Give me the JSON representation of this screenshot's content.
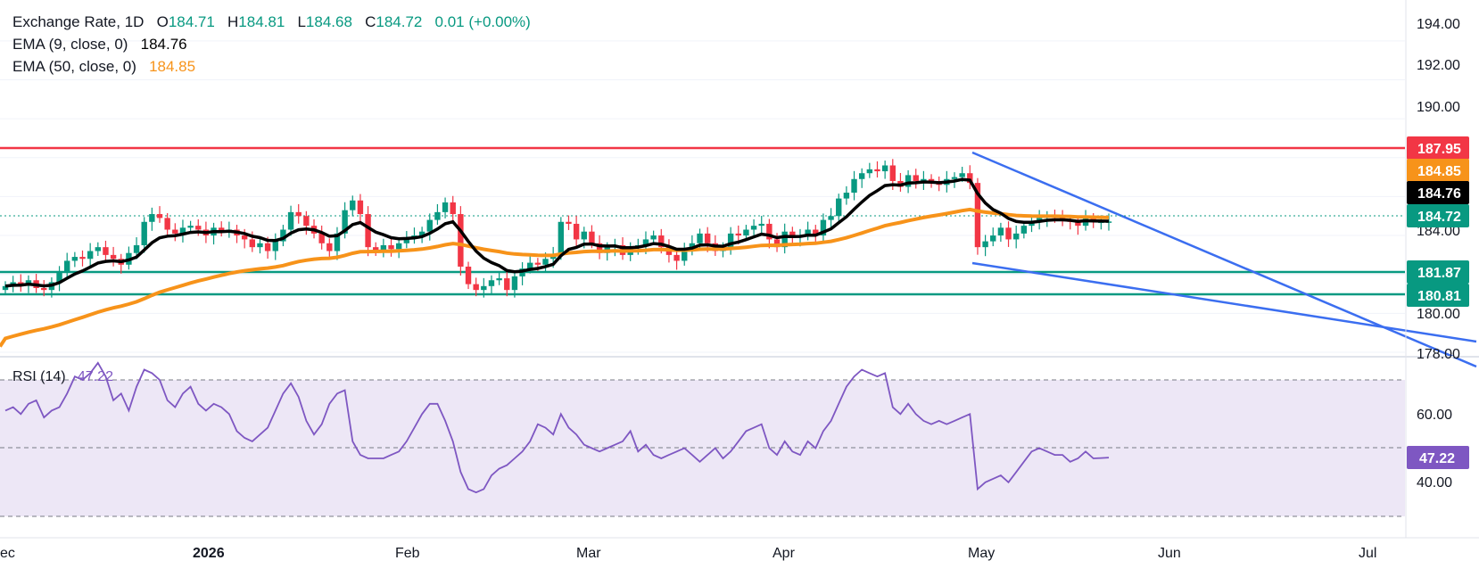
{
  "colors": {
    "up": "#089981",
    "down": "#f23645",
    "ema9": "#000000",
    "ema50": "#f7931a",
    "resistance": "#f23645",
    "support": "#089981",
    "trend": "#3b6ef0",
    "rsi": "#7e57c2",
    "rsi_band": "#ede7f6",
    "value_green": "#089981"
  },
  "legend": {
    "title": "Exchange Rate, 1D",
    "open_label": "O",
    "open": "184.71",
    "high_label": "H",
    "high": "184.81",
    "low_label": "L",
    "low": "184.68",
    "close_label": "C",
    "close": "184.72",
    "change": "0.01 (+0.00%)",
    "ema9_label": "EMA (9, close, 0)",
    "ema9_value": "184.76",
    "ema50_label": "EMA (50, close, 0)",
    "ema50_value": "184.85",
    "rsi_label": "RSI (14)",
    "rsi_value": "47.22"
  },
  "chart_data": [
    {
      "type": "candlestick",
      "x_axis_labels": [
        "ec",
        "2026",
        "Feb",
        "Mar",
        "Apr",
        "May",
        "Jun",
        "Jul"
      ],
      "y_ticks": [
        "194.00",
        "192.00",
        "190.00",
        "184.00",
        "180.00",
        "178.00"
      ],
      "ylim": [
        178,
        195
      ],
      "price_labels": [
        {
          "name": "resistance",
          "value": "187.95"
        },
        {
          "name": "ema50",
          "value": "184.85"
        },
        {
          "name": "ema9",
          "value": "184.76"
        },
        {
          "name": "last",
          "value": "184.72"
        },
        {
          "name": "support-1",
          "value": "181.87"
        },
        {
          "name": "support-2",
          "value": "180.81"
        }
      ],
      "horizontal_levels": [
        187.95,
        181.87,
        180.81
      ],
      "close": [
        181.4,
        181.6,
        181.5,
        181.7,
        181.3,
        181.2,
        181.6,
        182.1,
        182.7,
        182.9,
        182.8,
        183.2,
        183.4,
        183.0,
        182.8,
        182.5,
        183.1,
        183.5,
        184.7,
        185.1,
        184.9,
        184.3,
        184.1,
        184.4,
        184.5,
        184.3,
        184.0,
        184.4,
        184.2,
        184.3,
        184.0,
        183.8,
        183.4,
        183.6,
        183.2,
        183.7,
        184.3,
        185.2,
        185.0,
        184.5,
        184.1,
        183.6,
        183.2,
        184.1,
        185.3,
        185.8,
        185.1,
        183.4,
        183.2,
        183.5,
        183.3,
        183.6,
        183.9,
        184.0,
        184.2,
        184.8,
        185.2,
        185.7,
        185.1,
        182.4,
        181.5,
        181.2,
        181.4,
        181.7,
        181.8,
        181.2,
        181.9,
        182.3,
        182.6,
        182.5,
        182.8,
        183.0,
        184.7,
        184.6,
        183.8,
        184.2,
        183.6,
        183.1,
        183.4,
        183.5,
        183.0,
        183.4,
        183.5,
        183.8,
        184.0,
        183.4,
        183.0,
        182.7,
        183.3,
        183.6,
        184.1,
        183.6,
        183.2,
        183.4,
        184.1,
        184.0,
        184.3,
        184.5,
        184.6,
        183.8,
        183.4,
        184.2,
        183.9,
        184.0,
        184.3,
        184.0,
        184.8,
        185.0,
        185.9,
        186.2,
        186.9,
        187.2,
        187.4,
        187.3,
        187.6,
        186.8,
        186.5,
        187.1,
        186.8,
        186.9,
        186.7,
        186.6,
        186.9,
        187.0,
        187.2,
        186.7,
        183.4,
        183.7,
        184.0,
        184.4,
        183.8,
        184.1,
        184.5,
        184.7,
        184.9,
        185.0,
        184.9,
        184.8,
        184.7,
        184.5,
        184.9,
        184.7,
        184.71,
        184.72
      ],
      "series": [
        {
          "name": "EMA (9, close, 0)",
          "last": 184.76
        },
        {
          "name": "EMA (50, close, 0)",
          "last": 184.85
        }
      ]
    },
    {
      "type": "line",
      "name": "RSI (14)",
      "y_ticks": [
        "60.00",
        "40.00"
      ],
      "ylim": [
        22,
        82
      ],
      "bands": [
        70,
        50,
        30
      ],
      "last": 47.22,
      "values": [
        61,
        62,
        60,
        63,
        64,
        59,
        61,
        62,
        66,
        71,
        70,
        72,
        75,
        71,
        64,
        66,
        61,
        68,
        73,
        72,
        70,
        64,
        62,
        66,
        68,
        63,
        61,
        63,
        62,
        60,
        55,
        53,
        52,
        54,
        56,
        61,
        66,
        69,
        65,
        58,
        54,
        57,
        63,
        66,
        67,
        52,
        48,
        47,
        47,
        47,
        48,
        49,
        52,
        56,
        60,
        63,
        63,
        58,
        52,
        43,
        38,
        37,
        38,
        42,
        44,
        45,
        47,
        49,
        52,
        57,
        56,
        54,
        60,
        56,
        54,
        51,
        50,
        49,
        50,
        51,
        52,
        55,
        49,
        51,
        48,
        47,
        48,
        49,
        50,
        48,
        46,
        48,
        50,
        47,
        49,
        52,
        55,
        56,
        57,
        50,
        48,
        52,
        49,
        48,
        52,
        50,
        55,
        58,
        63,
        68,
        71,
        73,
        72,
        71,
        72,
        62,
        60,
        63,
        60,
        58,
        57,
        58,
        57,
        58,
        59,
        60,
        38,
        40,
        41,
        42,
        40,
        43,
        46,
        49,
        50,
        49,
        48,
        48,
        46,
        47,
        49,
        47,
        47.1,
        47.22
      ]
    }
  ]
}
